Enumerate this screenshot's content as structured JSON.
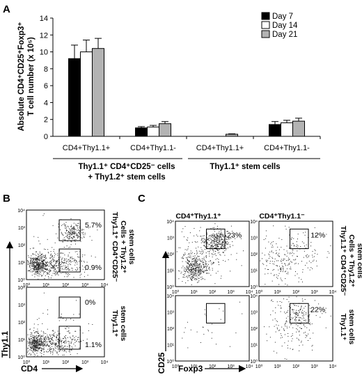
{
  "panels": {
    "A": {
      "letter": "A"
    },
    "B": {
      "letter": "B"
    },
    "C": {
      "letter": "C"
    }
  },
  "chart_data": [
    {
      "type": "bar",
      "panel": "A",
      "ylabel_line1": "Absolute CD4⁺CD25⁺Foxp3⁺",
      "ylabel_line2": "T cell number (x 10⁵)",
      "ylim": [
        0,
        14
      ],
      "yticks": [
        0,
        2,
        4,
        6,
        8,
        10,
        12,
        14
      ],
      "categories": [
        "CD4+Thy1.1+",
        "CD4+Thy1.1-",
        "CD4+Thy1.1+",
        "CD4+Thy1.1-"
      ],
      "groups": [
        {
          "label_line1": "Thy1.1⁺ CD4⁺CD25⁻ cells",
          "label_line2": "+ Thy1.2⁺ stem cells",
          "categories": [
            0,
            1
          ]
        },
        {
          "label_line1": "Thy1.1⁺ stem cells",
          "label_line2": "",
          "categories": [
            2,
            3
          ]
        }
      ],
      "series": [
        {
          "name": "Day 7",
          "color": "#000000",
          "values": [
            9.2,
            1.0,
            0.0,
            1.4
          ],
          "errors": [
            1.6,
            0.15,
            0.0,
            0.35
          ]
        },
        {
          "name": "Day 14",
          "color": "#ffffff",
          "values": [
            10.0,
            1.1,
            0.0,
            1.6
          ],
          "errors": [
            1.4,
            0.2,
            0.0,
            0.3
          ]
        },
        {
          "name": "Day 21",
          "color": "#b3b3b3",
          "values": [
            10.4,
            1.5,
            0.25,
            1.8
          ],
          "errors": [
            1.2,
            0.25,
            0.05,
            0.35
          ]
        }
      ],
      "legend": "top-right"
    },
    {
      "type": "scatter",
      "panel": "B",
      "xlabel": "CD4",
      "ylabel": "Thy1.1",
      "ticks": [
        "10⁰",
        "10¹",
        "10²",
        "10³",
        "10⁴"
      ],
      "plots": [
        {
          "row_label_line1": "Thy1.1⁺ CD4⁺CD25⁻",
          "row_label_line2": "Cells + Thy1.2⁺",
          "row_label_line3": "stem cells",
          "gates": [
            {
              "pct": "5.7%"
            },
            {
              "pct": "0.9%"
            }
          ]
        },
        {
          "row_label_line1": "Thy1.1⁺",
          "row_label_line2": "stem cells",
          "row_label_line3": "",
          "gates": [
            {
              "pct": "0%"
            },
            {
              "pct": "1.1%"
            }
          ]
        }
      ]
    },
    {
      "type": "scatter",
      "panel": "C",
      "xlabel": "Foxp3",
      "ylabel": "CD25",
      "col_labels": [
        "CD4⁺Thy1.1⁺",
        "CD4⁺Thy1.1⁻"
      ],
      "ticks": [
        "10⁰",
        "10¹",
        "10²",
        "10³",
        "10⁴"
      ],
      "row_labels": [
        {
          "line1": "Thy1.1⁺ CD4⁺CD25⁻",
          "line2": "Cells + Thy1.2⁺",
          "line3": "stem cells"
        },
        {
          "line1": "Thy1.1⁺",
          "line2": "stem cells",
          "line3": ""
        }
      ],
      "gate_pcts": [
        "23%",
        "12%",
        "",
        "22%"
      ]
    }
  ]
}
